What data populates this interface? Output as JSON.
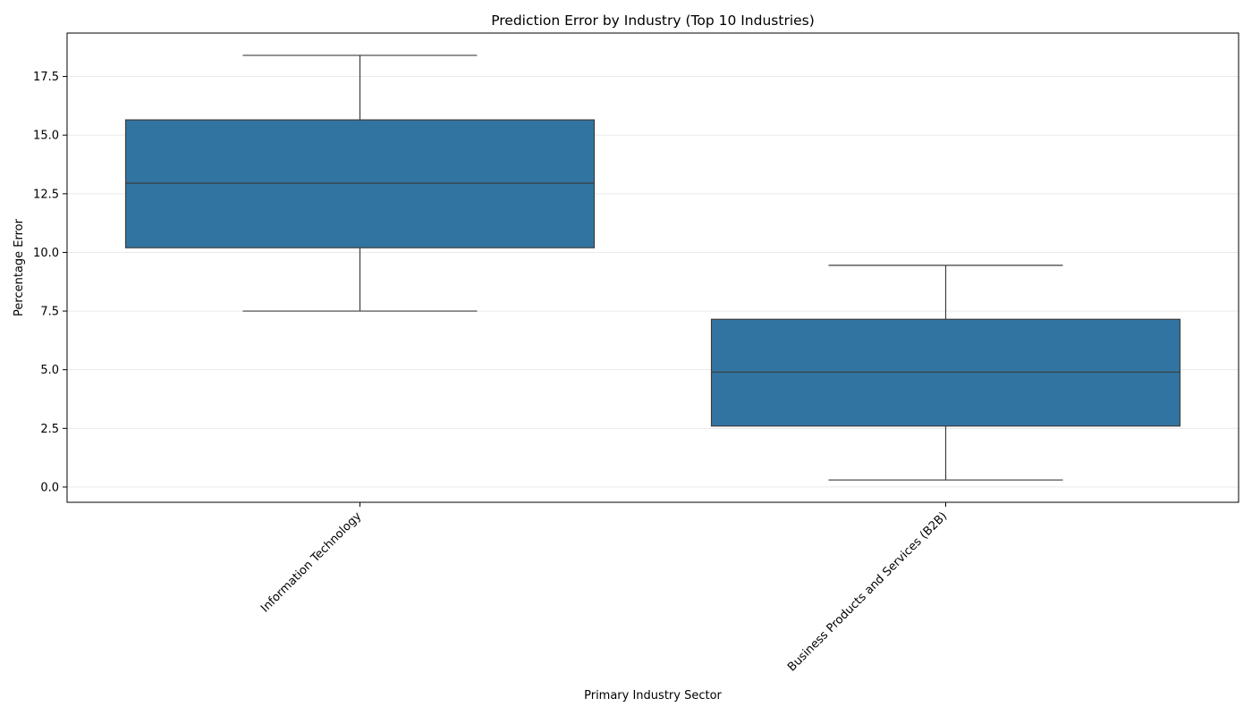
{
  "chart_data": {
    "type": "box",
    "title": "Prediction Error by Industry (Top 10 Industries)",
    "xlabel": "Primary Industry Sector",
    "ylabel": "Percentage Error",
    "ylim": [
      -0.65,
      19.35
    ],
    "yticks": [
      0.0,
      2.5,
      5.0,
      7.5,
      10.0,
      12.5,
      15.0,
      17.5
    ],
    "ytick_labels": [
      "0.0",
      "2.5",
      "5.0",
      "7.5",
      "10.0",
      "12.5",
      "15.0",
      "17.5"
    ],
    "grid": "y",
    "categories": [
      "Information Technology",
      "Business Products and Services (B2B)"
    ],
    "boxes": [
      {
        "category": "Information Technology",
        "whisker_low": 7.5,
        "q1": 10.2,
        "median": 12.95,
        "q3": 15.65,
        "whisker_high": 18.4
      },
      {
        "category": "Business Products and Services (B2B)",
        "whisker_low": 0.3,
        "q1": 2.6,
        "median": 4.9,
        "q3": 7.15,
        "whisker_high": 9.45
      }
    ],
    "colors": {
      "box_fill": "#3274a1",
      "box_edge": "#3d3d3d",
      "grid": "#e6e6e6",
      "axis": "#000000"
    }
  }
}
